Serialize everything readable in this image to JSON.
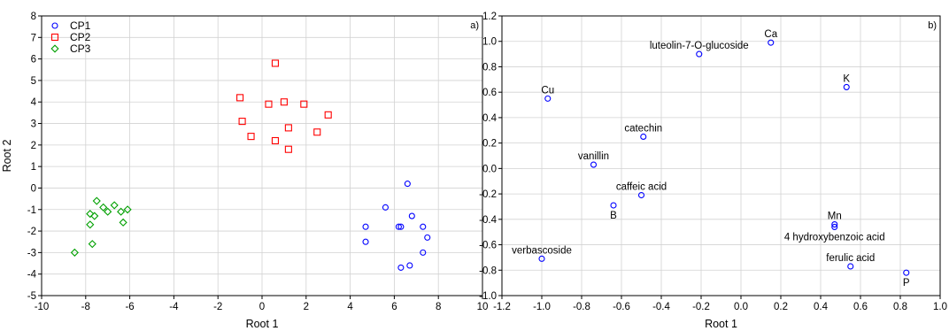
{
  "chart_data": [
    {
      "type": "scatter",
      "panel_label": "a)",
      "xlabel": "Root 1",
      "ylabel": "Root 2",
      "xlim": [
        -10,
        10
      ],
      "ylim": [
        -5,
        8
      ],
      "xticks": [
        -10,
        -8,
        -6,
        -4,
        -2,
        0,
        2,
        4,
        6,
        8,
        10
      ],
      "yticks": [
        -5,
        -4,
        -3,
        -2,
        -1,
        0,
        1,
        2,
        3,
        4,
        5,
        6,
        7,
        8
      ],
      "grid": true,
      "legend_position": "top-left",
      "series": [
        {
          "name": "CP1",
          "marker": "circle",
          "color": "#0000ff",
          "points": [
            [
              6.6,
              0.2
            ],
            [
              5.6,
              -0.9
            ],
            [
              6.8,
              -1.3
            ],
            [
              4.7,
              -1.8
            ],
            [
              6.3,
              -1.8
            ],
            [
              6.2,
              -1.8
            ],
            [
              7.3,
              -1.8
            ],
            [
              7.5,
              -2.3
            ],
            [
              4.7,
              -2.5
            ],
            [
              7.3,
              -3.0
            ],
            [
              6.7,
              -3.6
            ],
            [
              6.3,
              -3.7
            ]
          ]
        },
        {
          "name": "CP2",
          "marker": "square",
          "color": "#ff0000",
          "points": [
            [
              0.6,
              5.8
            ],
            [
              -1.0,
              4.2
            ],
            [
              0.3,
              3.9
            ],
            [
              1.0,
              4.0
            ],
            [
              1.9,
              3.9
            ],
            [
              3.0,
              3.4
            ],
            [
              -0.9,
              3.1
            ],
            [
              1.2,
              2.8
            ],
            [
              2.5,
              2.6
            ],
            [
              -0.5,
              2.4
            ],
            [
              0.6,
              2.2
            ],
            [
              1.2,
              1.8
            ]
          ]
        },
        {
          "name": "CP3",
          "marker": "diamond",
          "color": "#00a000",
          "points": [
            [
              -7.5,
              -0.6
            ],
            [
              -6.7,
              -0.8
            ],
            [
              -7.2,
              -0.9
            ],
            [
              -6.1,
              -1.0
            ],
            [
              -7.0,
              -1.1
            ],
            [
              -6.4,
              -1.1
            ],
            [
              -7.8,
              -1.2
            ],
            [
              -7.6,
              -1.3
            ],
            [
              -6.3,
              -1.6
            ],
            [
              -7.8,
              -1.7
            ],
            [
              -7.7,
              -2.6
            ],
            [
              -8.5,
              -3.0
            ]
          ]
        }
      ]
    },
    {
      "type": "scatter",
      "panel_label": "b)",
      "xlabel": "Root 1",
      "ylabel": "",
      "xlim": [
        -1.2,
        1.0
      ],
      "ylim": [
        -1.0,
        1.2
      ],
      "xticks": [
        -1.2,
        -1.0,
        -0.8,
        -0.6,
        -0.4,
        -0.2,
        0.0,
        0.2,
        0.4,
        0.6,
        0.8,
        1.0
      ],
      "yticks": [
        -1.0,
        -0.8,
        -0.6,
        -0.4,
        -0.2,
        0.0,
        0.2,
        0.4,
        0.6,
        0.8,
        1.0,
        1.2
      ],
      "grid": true,
      "marker": "circle",
      "color": "#0000ff",
      "points": [
        {
          "label": "Ca",
          "x": 0.15,
          "y": 0.99,
          "label_side": "above"
        },
        {
          "label": "luteolin-7-O-glucoside",
          "x": -0.21,
          "y": 0.9,
          "label_side": "above"
        },
        {
          "label": "K",
          "x": 0.53,
          "y": 0.64,
          "label_side": "above"
        },
        {
          "label": "Cu",
          "x": -0.97,
          "y": 0.55,
          "label_side": "above"
        },
        {
          "label": "catechin",
          "x": -0.49,
          "y": 0.25,
          "label_side": "above"
        },
        {
          "label": "vanillin",
          "x": -0.74,
          "y": 0.03,
          "label_side": "above"
        },
        {
          "label": "caffeic acid",
          "x": -0.5,
          "y": -0.21,
          "label_side": "above"
        },
        {
          "label": "B",
          "x": -0.64,
          "y": -0.29,
          "label_side": "below"
        },
        {
          "label": "Mn",
          "x": 0.47,
          "y": -0.44,
          "label_side": "above"
        },
        {
          "label": "4 hydroxybenzoic acid",
          "x": 0.47,
          "y": -0.46,
          "label_side": "below"
        },
        {
          "label": "verbascoside",
          "x": -1.0,
          "y": -0.71,
          "label_side": "above"
        },
        {
          "label": "ferulic acid",
          "x": 0.55,
          "y": -0.77,
          "label_side": "above"
        },
        {
          "label": "P",
          "x": 0.83,
          "y": -0.82,
          "label_side": "below"
        }
      ]
    }
  ]
}
